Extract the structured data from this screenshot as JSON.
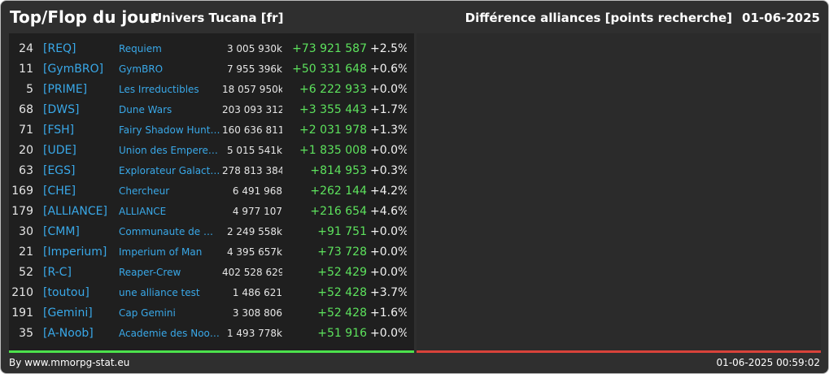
{
  "header": {
    "title": "Top/Flop du jour",
    "subtitle": "Univers Tucana [fr]",
    "category": "Différence alliances [points recherche]",
    "date": "01-06-2025"
  },
  "rows": [
    {
      "rank": "24",
      "tag": "[REQ]",
      "name": "Requiem",
      "points": "3 005 930k",
      "diff": "+73 921 587",
      "pct": "+2.5%"
    },
    {
      "rank": "11",
      "tag": "[GymBRO]",
      "name": "GymBRO",
      "points": "7 955 396k",
      "diff": "+50 331 648",
      "pct": "+0.6%"
    },
    {
      "rank": "5",
      "tag": "[PRIME]",
      "name": "Les Irreductibles",
      "points": "18 057 950k",
      "diff": "+6 222 933",
      "pct": "+0.0%"
    },
    {
      "rank": "68",
      "tag": "[DWS]",
      "name": "Dune Wars",
      "points": "203 093 312",
      "diff": "+3 355 443",
      "pct": "+1.7%"
    },
    {
      "rank": "71",
      "tag": "[FSH]",
      "name": "Fairy Shadow Hunte...",
      "points": "160 636 811",
      "diff": "+2 031 978",
      "pct": "+1.3%"
    },
    {
      "rank": "20",
      "tag": "[UDE]",
      "name": "Union des Empereur...",
      "points": "5 015 541k",
      "diff": "+1 835 008",
      "pct": "+0.0%"
    },
    {
      "rank": "63",
      "tag": "[EGS]",
      "name": "Explorateur Galacti...",
      "points": "278 813 384",
      "diff": "+814 953",
      "pct": "+0.3%"
    },
    {
      "rank": "169",
      "tag": "[CHE]",
      "name": "Chercheur",
      "points": "6 491 968",
      "diff": "+262 144",
      "pct": "+4.2%"
    },
    {
      "rank": "179",
      "tag": "[ALLIANCE]",
      "name": "ALLIANCE",
      "points": "4 977 107",
      "diff": "+216 654",
      "pct": "+4.6%"
    },
    {
      "rank": "30",
      "tag": "[CMM]",
      "name": "Communaute de m...",
      "points": "2 249 558k",
      "diff": "+91 751",
      "pct": "+0.0%"
    },
    {
      "rank": "21",
      "tag": "[Imperium]",
      "name": "Imperium of Man",
      "points": "4 395 657k",
      "diff": "+73 728",
      "pct": "+0.0%"
    },
    {
      "rank": "52",
      "tag": "[R-C]",
      "name": "Reaper-Crew",
      "points": "402 528 629",
      "diff": "+52 429",
      "pct": "+0.0%"
    },
    {
      "rank": "210",
      "tag": "[toutou]",
      "name": "une alliance test",
      "points": "1 486 621",
      "diff": "+52 428",
      "pct": "+3.7%"
    },
    {
      "rank": "191",
      "tag": "[Gemini]",
      "name": "Cap Gemini",
      "points": "3 308 806",
      "diff": "+52 428",
      "pct": "+1.6%"
    },
    {
      "rank": "35",
      "tag": "[A-Noob]",
      "name": "Academie des Noob...",
      "points": "1 493 778k",
      "diff": "+51 916",
      "pct": "+0.0%"
    }
  ],
  "footer": {
    "source": "By www.mmorpg-stat.eu",
    "timestamp": "01-06-2025 00:59:02"
  },
  "colors": {
    "top_accent": "#4ce24c",
    "flop_accent": "#d9423a",
    "link": "#39a8e8"
  }
}
